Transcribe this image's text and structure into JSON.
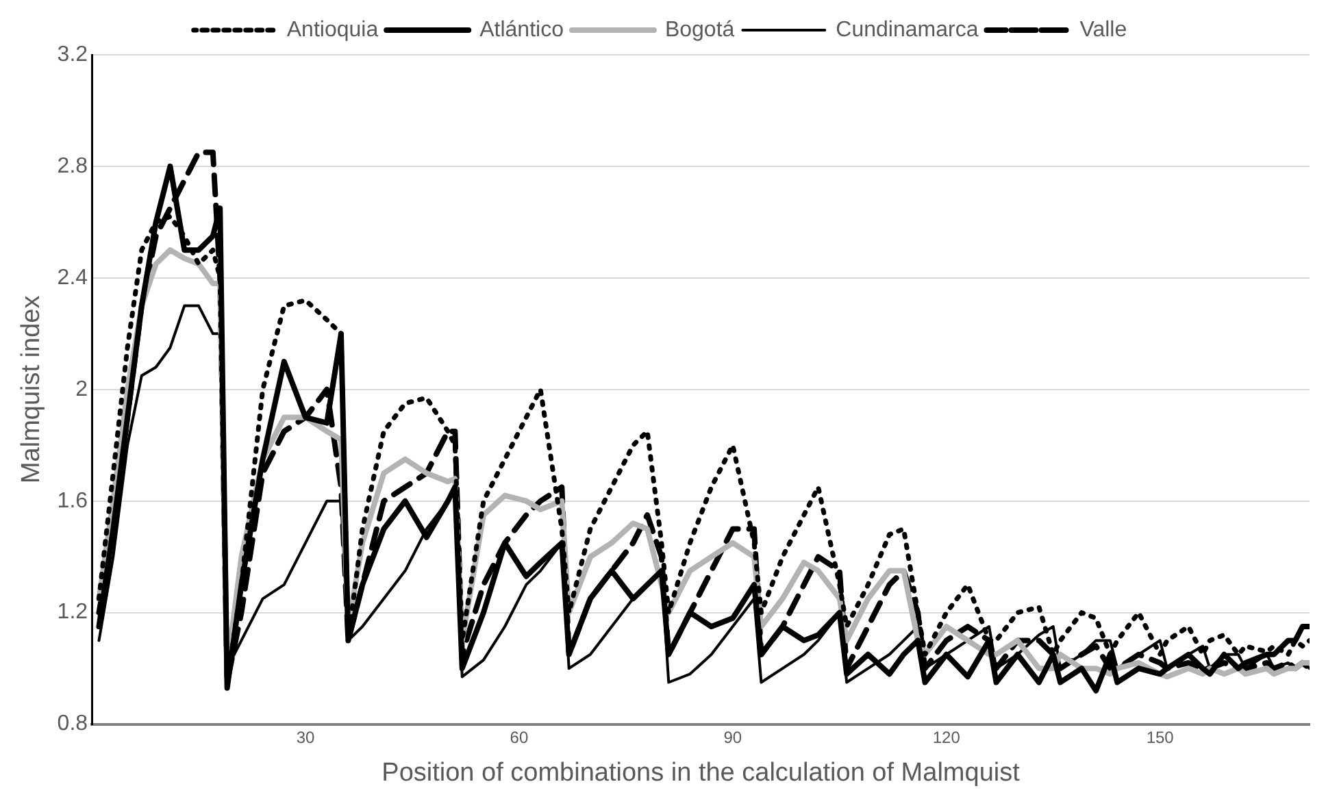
{
  "chart_data": {
    "type": "line",
    "xlabel": "Position of combinations in the calculation of Malmquist",
    "ylabel": "Malmquist index",
    "x": [
      1,
      3,
      5,
      7,
      9,
      11,
      13,
      15,
      17,
      18,
      19,
      21,
      24,
      27,
      30,
      33,
      35,
      36,
      38,
      41,
      44,
      47,
      50,
      51,
      52,
      55,
      58,
      61,
      63,
      66,
      67,
      70,
      73,
      76,
      78,
      80,
      81,
      84,
      87,
      90,
      93,
      94,
      97,
      100,
      102,
      105,
      106,
      109,
      112,
      114,
      116,
      117,
      120,
      123,
      126,
      127,
      130,
      133,
      135,
      136,
      139,
      141,
      143,
      144,
      147,
      150,
      151,
      154,
      156,
      157,
      159,
      161,
      162,
      165,
      166,
      168,
      169,
      170,
      171
    ],
    "series": [
      {
        "name": "Antioquia",
        "color": "#000000",
        "line_style": "dotted",
        "values": [
          1.25,
          1.7,
          2.15,
          2.5,
          2.6,
          2.62,
          2.55,
          2.45,
          2.5,
          2.4,
          0.95,
          1.3,
          2.0,
          2.3,
          2.32,
          2.25,
          2.2,
          1.1,
          1.5,
          1.85,
          1.95,
          1.97,
          1.85,
          1.8,
          1.1,
          1.6,
          1.75,
          1.9,
          2.0,
          1.5,
          1.2,
          1.5,
          1.65,
          1.8,
          1.85,
          1.45,
          1.2,
          1.45,
          1.65,
          1.8,
          1.45,
          1.2,
          1.4,
          1.55,
          1.65,
          1.3,
          1.15,
          1.3,
          1.48,
          1.5,
          1.2,
          1.05,
          1.2,
          1.3,
          1.1,
          1.1,
          1.2,
          1.22,
          1.05,
          1.1,
          1.2,
          1.18,
          1.05,
          1.1,
          1.2,
          1.05,
          1.1,
          1.15,
          1.05,
          1.1,
          1.12,
          1.05,
          1.08,
          1.06,
          1.08,
          1.05,
          1.1,
          1.08,
          1.1
        ]
      },
      {
        "name": "Atlántico",
        "color": "#000000",
        "line_style": "solid",
        "values": [
          1.15,
          1.5,
          1.9,
          2.3,
          2.6,
          2.8,
          2.5,
          2.5,
          2.55,
          2.65,
          0.93,
          1.3,
          1.75,
          2.1,
          1.9,
          1.88,
          2.2,
          1.1,
          1.3,
          1.5,
          1.6,
          1.47,
          1.6,
          1.65,
          1.0,
          1.2,
          1.45,
          1.33,
          1.38,
          1.45,
          1.05,
          1.25,
          1.35,
          1.25,
          1.3,
          1.35,
          1.05,
          1.2,
          1.15,
          1.18,
          1.3,
          1.05,
          1.15,
          1.1,
          1.12,
          1.2,
          0.98,
          1.05,
          0.98,
          1.05,
          1.1,
          0.95,
          1.05,
          0.97,
          1.1,
          0.95,
          1.05,
          0.95,
          1.05,
          0.95,
          1.0,
          0.92,
          1.05,
          0.95,
          1.0,
          0.98,
          1.0,
          1.05,
          1.0,
          0.98,
          1.05,
          1.0,
          1.02,
          1.05,
          1.05,
          1.1,
          1.1,
          1.15,
          1.15
        ]
      },
      {
        "name": "Bogotá",
        "color": "#b3b3b3",
        "line_style": "solid",
        "values": [
          1.25,
          1.6,
          2.0,
          2.3,
          2.45,
          2.5,
          2.47,
          2.45,
          2.38,
          2.38,
          1.0,
          1.4,
          1.75,
          1.9,
          1.9,
          1.85,
          1.82,
          1.15,
          1.45,
          1.7,
          1.75,
          1.7,
          1.67,
          1.68,
          1.1,
          1.55,
          1.62,
          1.6,
          1.57,
          1.6,
          1.2,
          1.4,
          1.45,
          1.52,
          1.5,
          1.3,
          1.2,
          1.35,
          1.4,
          1.45,
          1.4,
          1.15,
          1.25,
          1.38,
          1.35,
          1.25,
          1.1,
          1.25,
          1.35,
          1.35,
          1.1,
          1.05,
          1.15,
          1.1,
          1.05,
          1.05,
          1.1,
          1.0,
          1.0,
          1.05,
          1.0,
          1.0,
          0.98,
          1.0,
          1.02,
          0.98,
          0.97,
          1.0,
          0.98,
          1.0,
          0.98,
          1.0,
          0.98,
          1.0,
          0.98,
          1.0,
          1.0,
          1.02,
          1.02
        ]
      },
      {
        "name": "Cundinamarca",
        "color": "#000000",
        "line_style": "solid",
        "values": [
          1.1,
          1.4,
          1.8,
          2.05,
          2.08,
          2.15,
          2.3,
          2.3,
          2.2,
          2.2,
          1.0,
          1.1,
          1.25,
          1.3,
          1.45,
          1.6,
          1.6,
          1.1,
          1.15,
          1.25,
          1.35,
          1.5,
          1.6,
          1.65,
          0.97,
          1.03,
          1.15,
          1.3,
          1.35,
          1.45,
          1.0,
          1.05,
          1.15,
          1.25,
          1.3,
          1.35,
          0.95,
          0.98,
          1.05,
          1.15,
          1.25,
          0.95,
          1.0,
          1.05,
          1.1,
          1.2,
          0.95,
          1.0,
          1.05,
          1.1,
          1.15,
          1.0,
          1.05,
          1.1,
          1.15,
          1.0,
          1.05,
          1.12,
          1.15,
          1.0,
          1.05,
          1.1,
          1.1,
          1.0,
          1.05,
          1.1,
          1.0,
          1.05,
          1.08,
          1.0,
          1.05,
          1.05,
          1.0,
          1.05,
          1.0,
          1.02,
          1.0,
          1.02,
          1.0
        ]
      },
      {
        "name": "Valle",
        "color": "#000000",
        "line_style": "dashed",
        "values": [
          1.2,
          1.5,
          1.9,
          2.3,
          2.55,
          2.65,
          2.75,
          2.85,
          2.85,
          2.4,
          0.95,
          1.2,
          1.7,
          1.85,
          1.9,
          2.0,
          1.65,
          1.1,
          1.3,
          1.6,
          1.65,
          1.7,
          1.85,
          1.85,
          1.05,
          1.3,
          1.45,
          1.55,
          1.6,
          1.65,
          1.05,
          1.25,
          1.35,
          1.45,
          1.55,
          1.4,
          1.05,
          1.2,
          1.35,
          1.5,
          1.5,
          1.05,
          1.15,
          1.3,
          1.4,
          1.35,
          1.0,
          1.15,
          1.3,
          1.35,
          1.2,
          1.0,
          1.1,
          1.15,
          1.1,
          1.0,
          1.1,
          1.1,
          1.05,
          1.0,
          1.05,
          1.08,
          1.0,
          1.0,
          1.05,
          1.02,
          1.0,
          1.02,
          1.0,
          1.0,
          1.02,
          1.0,
          1.0,
          1.02,
          1.0,
          1.02,
          1.0,
          1.02,
          1.0
        ]
      }
    ],
    "xlim": [
      0,
      171
    ],
    "xticks": [
      30,
      60,
      90,
      120,
      150
    ],
    "ylim": [
      0.8,
      3.2
    ],
    "yticks": [
      0.8,
      1.2,
      1.6,
      2,
      2.4,
      2.8,
      3.2
    ],
    "grid": "y",
    "legend": "top",
    "marker": "none"
  }
}
